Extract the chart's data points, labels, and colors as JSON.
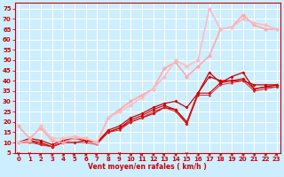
{
  "xlabel": "Vent moyen/en rafales ( km/h )",
  "bg_color": "#cceeff",
  "grid_color": "#ffffff",
  "x_ticks": [
    0,
    1,
    2,
    3,
    4,
    5,
    6,
    7,
    8,
    9,
    10,
    11,
    12,
    13,
    14,
    15,
    16,
    17,
    18,
    19,
    20,
    21,
    22,
    23
  ],
  "y_ticks": [
    5,
    10,
    15,
    20,
    25,
    30,
    35,
    40,
    45,
    50,
    55,
    60,
    65,
    70,
    75
  ],
  "xlim": [
    -0.3,
    23.3
  ],
  "ylim": [
    5,
    78
  ],
  "lines": [
    {
      "x": [
        0,
        1,
        2,
        3,
        4,
        5,
        6,
        7,
        8,
        9,
        10,
        11,
        12,
        13,
        14,
        15,
        16,
        17,
        18,
        19,
        20,
        21,
        22,
        23
      ],
      "y": [
        10,
        11,
        10,
        8,
        10,
        12,
        11,
        10,
        15,
        17,
        20,
        22,
        24,
        27,
        26,
        20,
        34,
        42,
        40,
        40,
        40,
        38,
        38,
        38
      ],
      "color": "#cc0000",
      "lw": 0.9,
      "ms": 2.0
    },
    {
      "x": [
        0,
        1,
        2,
        3,
        4,
        5,
        6,
        7,
        8,
        9,
        10,
        11,
        12,
        13,
        14,
        15,
        16,
        17,
        18,
        19,
        20,
        21,
        22,
        23
      ],
      "y": [
        10,
        12,
        11,
        9,
        11,
        12,
        12,
        10,
        16,
        18,
        22,
        24,
        27,
        29,
        30,
        27,
        34,
        44,
        39,
        42,
        44,
        36,
        37,
        38
      ],
      "color": "#cc0000",
      "lw": 0.9,
      "ms": 2.0
    },
    {
      "x": [
        0,
        1,
        2,
        3,
        4,
        5,
        6,
        7,
        8,
        9,
        10,
        11,
        12,
        13,
        14,
        15,
        16,
        17,
        18,
        19,
        20,
        21,
        22,
        23
      ],
      "y": [
        10,
        11,
        9,
        8,
        10,
        10,
        11,
        10,
        15,
        17,
        21,
        23,
        26,
        28,
        26,
        19,
        34,
        34,
        39,
        40,
        41,
        36,
        37,
        37
      ],
      "color": "#cc0000",
      "lw": 0.8,
      "ms": 2.0
    },
    {
      "x": [
        0,
        1,
        2,
        3,
        4,
        5,
        6,
        7,
        8,
        9,
        10,
        11,
        12,
        13,
        14,
        15,
        16,
        17,
        18,
        19,
        20,
        21,
        22,
        23
      ],
      "y": [
        10,
        10,
        9,
        8,
        10,
        10,
        10,
        9,
        15,
        16,
        20,
        22,
        25,
        27,
        25,
        19,
        33,
        33,
        38,
        39,
        40,
        35,
        36,
        37
      ],
      "color": "#dd2222",
      "lw": 0.7,
      "ms": 1.5
    },
    {
      "x": [
        0,
        1,
        2,
        3,
        4,
        5,
        6,
        7,
        8,
        9,
        10,
        11,
        12,
        13,
        14,
        15,
        16,
        17,
        18,
        19,
        20,
        21,
        22,
        23
      ],
      "y": [
        18,
        12,
        17,
        11,
        10,
        12,
        12,
        10,
        22,
        26,
        30,
        33,
        36,
        46,
        49,
        42,
        47,
        52,
        65,
        66,
        72,
        67,
        65,
        65
      ],
      "color": "#ffaaaa",
      "lw": 1.2,
      "ms": 2.5
    },
    {
      "x": [
        0,
        1,
        2,
        3,
        4,
        5,
        6,
        7,
        8,
        9,
        10,
        11,
        12,
        13,
        14,
        15,
        16,
        17,
        18,
        19,
        20,
        21,
        22,
        23
      ],
      "y": [
        10,
        11,
        18,
        12,
        12,
        13,
        12,
        10,
        22,
        25,
        28,
        32,
        36,
        42,
        50,
        47,
        50,
        75,
        65,
        66,
        70,
        68,
        67,
        65
      ],
      "color": "#ffbbbb",
      "lw": 1.1,
      "ms": 2.5
    }
  ],
  "arrow_angles": [
    0,
    0,
    45,
    90,
    90,
    135,
    90,
    135,
    90,
    0,
    90,
    135,
    90,
    135,
    90,
    0,
    90,
    90,
    90,
    90,
    90,
    90,
    90,
    45
  ],
  "xlabel_fontsize": 5.5,
  "tick_fontsize": 5.0
}
